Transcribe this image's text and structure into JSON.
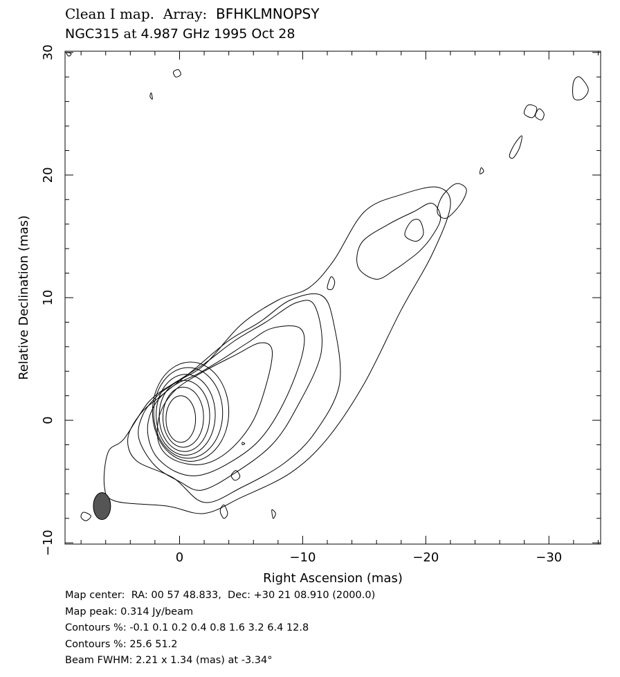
{
  "title": {
    "line1_a": "Clean I map.  Array:",
    "line1_b": "BFHKLMNOPSY",
    "line2_source": "NGC315",
    "line2_at": "at",
    "line2_freq_date": "4.987 GHz 1995 Oct 28"
  },
  "footer": {
    "map_center": "Map center:  RA: 00 57 48.833,  Dec: +30 21 08.910 (2000.0)",
    "map_peak": "Map peak: 0.314 Jy/beam",
    "contours_1": "Contours %: -0.1 0.1 0.2 0.4 0.8 1.6 3.2 6.4 12.8",
    "contours_2": "Contours %: 25.6 51.2",
    "beam": "Beam FWHM: 2.21 x 1.34 (mas) at -3.34°"
  },
  "chart_data": {
    "type": "contour",
    "xlabel": "Right Ascension  (mas)",
    "ylabel": "Relative Declination  (mas)",
    "xlim": [
      9.3,
      -34.2
    ],
    "ylim": [
      -10.1,
      30.1
    ],
    "x_ticks": [
      {
        "value": 0,
        "label": "0"
      },
      {
        "value": -10,
        "label": "−10"
      },
      {
        "value": -20,
        "label": "−20"
      },
      {
        "value": -30,
        "label": "−30"
      }
    ],
    "y_ticks": [
      {
        "value": -10,
        "label": "−10"
      },
      {
        "value": 0,
        "label": "0"
      },
      {
        "value": 10,
        "label": "10"
      },
      {
        "value": 20,
        "label": "20"
      },
      {
        "value": 30,
        "label": "30"
      }
    ],
    "minor_step": 2,
    "contour_levels_percent": [
      -0.1,
      0.1,
      0.2,
      0.4,
      0.8,
      1.6,
      3.2,
      6.4,
      12.8,
      25.6,
      51.2
    ],
    "core_rings": [
      {
        "ra": -0.1,
        "dec": 0.1,
        "rx": 1.2,
        "ry": 1.9
      },
      {
        "ra": -0.3,
        "dec": 0.25,
        "rx": 1.65,
        "ry": 2.45
      },
      {
        "ra": -0.4,
        "dec": 0.35,
        "rx": 2.05,
        "ry": 2.9
      },
      {
        "ra": -0.5,
        "dec": 0.45,
        "rx": 2.4,
        "ry": 3.3
      },
      {
        "ra": -0.7,
        "dec": 0.6,
        "rx": 2.8,
        "ry": 3.7
      },
      {
        "ra": -0.9,
        "dec": 0.7,
        "rx": 3.1,
        "ry": 4.05
      }
    ],
    "contours": [
      {
        "points": [
          [
            -2.0,
            -7.6
          ],
          [
            -5.0,
            -6.3
          ],
          [
            -9.0,
            -4.3
          ],
          [
            -12.0,
            -1.5
          ],
          [
            -15.0,
            3.0
          ],
          [
            -18.0,
            9.0
          ],
          [
            -20.5,
            13.5
          ],
          [
            -22.0,
            17.5
          ],
          [
            -21.0,
            19.0
          ],
          [
            -18.0,
            18.4
          ],
          [
            -15.0,
            17.0
          ],
          [
            -12.5,
            13.0
          ],
          [
            -10.5,
            10.8
          ],
          [
            -8.0,
            9.8
          ],
          [
            -5.0,
            7.8
          ],
          [
            -2.0,
            4.5
          ],
          [
            0.5,
            3.0
          ],
          [
            2.5,
            1.5
          ],
          [
            4.5,
            -1.5
          ],
          [
            5.8,
            -2.6
          ],
          [
            6.1,
            -5.4
          ],
          [
            5.2,
            -6.6
          ],
          [
            1.0,
            -7.0
          ]
        ]
      },
      {
        "points": [
          [
            -2.0,
            -6.7
          ],
          [
            -5.0,
            -5.5
          ],
          [
            -8.5,
            -3.5
          ],
          [
            -11.0,
            -1.0
          ],
          [
            -13.0,
            3.0
          ],
          [
            -12.5,
            8.0
          ],
          [
            -11.5,
            10.2
          ],
          [
            -9.0,
            9.8
          ],
          [
            -6.5,
            8.0
          ],
          [
            -4.0,
            6.5
          ],
          [
            -1.0,
            4.0
          ],
          [
            1.5,
            2.0
          ],
          [
            3.2,
            0.5
          ],
          [
            4.2,
            -1.5
          ],
          [
            3.5,
            -3.3
          ],
          [
            0.5,
            -4.7
          ]
        ]
      },
      {
        "points": [
          [
            -1.8,
            -5.7
          ],
          [
            -4.5,
            -4.3
          ],
          [
            -7.5,
            -2.0
          ],
          [
            -9.5,
            1.0
          ],
          [
            -11.5,
            5.5
          ],
          [
            -11.0,
            9.3
          ],
          [
            -9.5,
            9.6
          ],
          [
            -7.0,
            8.0
          ],
          [
            -4.5,
            6.5
          ],
          [
            -2.0,
            4.6
          ],
          [
            0.0,
            3.3
          ],
          [
            1.8,
            2.0
          ],
          [
            3.0,
            0.4
          ],
          [
            3.3,
            -1.5
          ],
          [
            2.0,
            -3.7
          ],
          [
            0.0,
            -5.0
          ]
        ]
      },
      {
        "points": [
          [
            -1.6,
            -4.5
          ],
          [
            -4.0,
            -3.5
          ],
          [
            -6.5,
            -1.6
          ],
          [
            -8.5,
            1.5
          ],
          [
            -10.0,
            5.5
          ],
          [
            -9.8,
            7.5
          ],
          [
            -7.5,
            7.5
          ],
          [
            -5.5,
            6.3
          ],
          [
            -3.5,
            5.0
          ],
          [
            -1.5,
            3.8
          ],
          [
            0.5,
            2.8
          ],
          [
            2.0,
            1.3
          ],
          [
            2.6,
            -0.7
          ],
          [
            2.0,
            -2.8
          ],
          [
            0.3,
            -4.2
          ]
        ]
      },
      {
        "points": [
          [
            -1.8,
            -3.6
          ],
          [
            -4.0,
            -2.5
          ],
          [
            -6.0,
            0.0
          ],
          [
            -7.2,
            3.5
          ],
          [
            -7.5,
            5.8
          ],
          [
            -6.5,
            6.3
          ],
          [
            -4.5,
            5.3
          ],
          [
            -2.0,
            4.0
          ],
          [
            0.3,
            2.5
          ],
          [
            1.6,
            0.5
          ],
          [
            1.7,
            -1.8
          ],
          [
            0.5,
            -3.2
          ]
        ]
      },
      {
        "points": [
          [
            -16.0,
            11.5
          ],
          [
            -14.5,
            12.5
          ],
          [
            -14.8,
            14.5
          ],
          [
            -17.0,
            16.0
          ],
          [
            -19.0,
            17.0
          ],
          [
            -20.5,
            17.7
          ],
          [
            -21.2,
            16.5
          ],
          [
            -20.5,
            15.0
          ],
          [
            -19.5,
            13.8
          ],
          [
            -18.5,
            13.0
          ],
          [
            -17.5,
            12.3
          ]
        ]
      },
      {
        "points": [
          [
            -18.3,
            15.1
          ],
          [
            -18.8,
            16.2
          ],
          [
            -19.5,
            16.3
          ],
          [
            -19.8,
            15.2
          ],
          [
            -19.2,
            14.6
          ]
        ]
      },
      {
        "points": [
          [
            -21.0,
            17.5
          ],
          [
            -21.5,
            18.5
          ],
          [
            -22.5,
            19.3
          ],
          [
            -23.3,
            18.8
          ],
          [
            -22.8,
            17.6
          ],
          [
            -21.7,
            16.5
          ],
          [
            -21.0,
            16.8
          ]
        ]
      },
      {
        "points": [
          [
            -12.0,
            10.8
          ],
          [
            -12.3,
            11.7
          ],
          [
            -12.6,
            11.3
          ],
          [
            -12.4,
            10.7
          ]
        ]
      },
      {
        "points": [
          [
            -28.0,
            25.0
          ],
          [
            -28.3,
            25.7
          ],
          [
            -29.0,
            25.5
          ],
          [
            -28.7,
            24.7
          ]
        ]
      },
      {
        "points": [
          [
            -28.9,
            24.8
          ],
          [
            -29.2,
            25.4
          ],
          [
            -29.6,
            25.0
          ],
          [
            -29.4,
            24.5
          ]
        ]
      },
      {
        "points": [
          [
            -26.8,
            21.6
          ],
          [
            -27.2,
            22.5
          ],
          [
            -27.8,
            23.2
          ],
          [
            -27.6,
            22.2
          ],
          [
            -27.1,
            21.4
          ]
        ]
      },
      {
        "points": [
          [
            -32.0,
            26.3
          ],
          [
            -32.0,
            27.6
          ],
          [
            -32.5,
            28.0
          ],
          [
            -33.2,
            27.0
          ],
          [
            -32.7,
            26.2
          ]
        ]
      },
      {
        "points": [
          [
            -24.4,
            20.1
          ],
          [
            -24.5,
            20.6
          ],
          [
            -24.7,
            20.3
          ]
        ]
      },
      {
        "points": [
          [
            -3.3,
            -7.4
          ],
          [
            -3.6,
            -6.9
          ],
          [
            -3.9,
            -7.6
          ],
          [
            -3.6,
            -8.0
          ]
        ]
      },
      {
        "points": [
          [
            -5.1,
            -1.8
          ],
          [
            -5.3,
            -1.9
          ],
          [
            -5.1,
            -2.0
          ]
        ]
      },
      {
        "points": [
          [
            -7.5,
            -7.3
          ],
          [
            -7.8,
            -7.6
          ],
          [
            -7.6,
            -8.0
          ]
        ]
      },
      {
        "points": [
          [
            -4.6,
            -4.1
          ],
          [
            -4.9,
            -4.6
          ],
          [
            -4.5,
            -4.9
          ],
          [
            -4.2,
            -4.5
          ]
        ]
      },
      {
        "points": [
          [
            0.1,
            28.6
          ],
          [
            -0.1,
            28.2
          ],
          [
            0.3,
            28.0
          ],
          [
            0.5,
            28.4
          ]
        ]
      },
      {
        "points": [
          [
            2.2,
            26.2
          ],
          [
            2.3,
            26.7
          ],
          [
            2.4,
            26.4
          ]
        ]
      },
      {
        "points": [
          [
            9.2,
            30.0
          ],
          [
            9.0,
            29.7
          ],
          [
            8.8,
            29.9
          ]
        ]
      },
      {
        "points": [
          [
            7.8,
            -7.5
          ],
          [
            8.0,
            -7.9
          ],
          [
            7.6,
            -8.2
          ],
          [
            7.2,
            -7.8
          ]
        ]
      }
    ],
    "beam": {
      "ra": 6.3,
      "dec": -7.0,
      "rx": 0.7,
      "ry": 1.1,
      "color": "#555555"
    }
  }
}
